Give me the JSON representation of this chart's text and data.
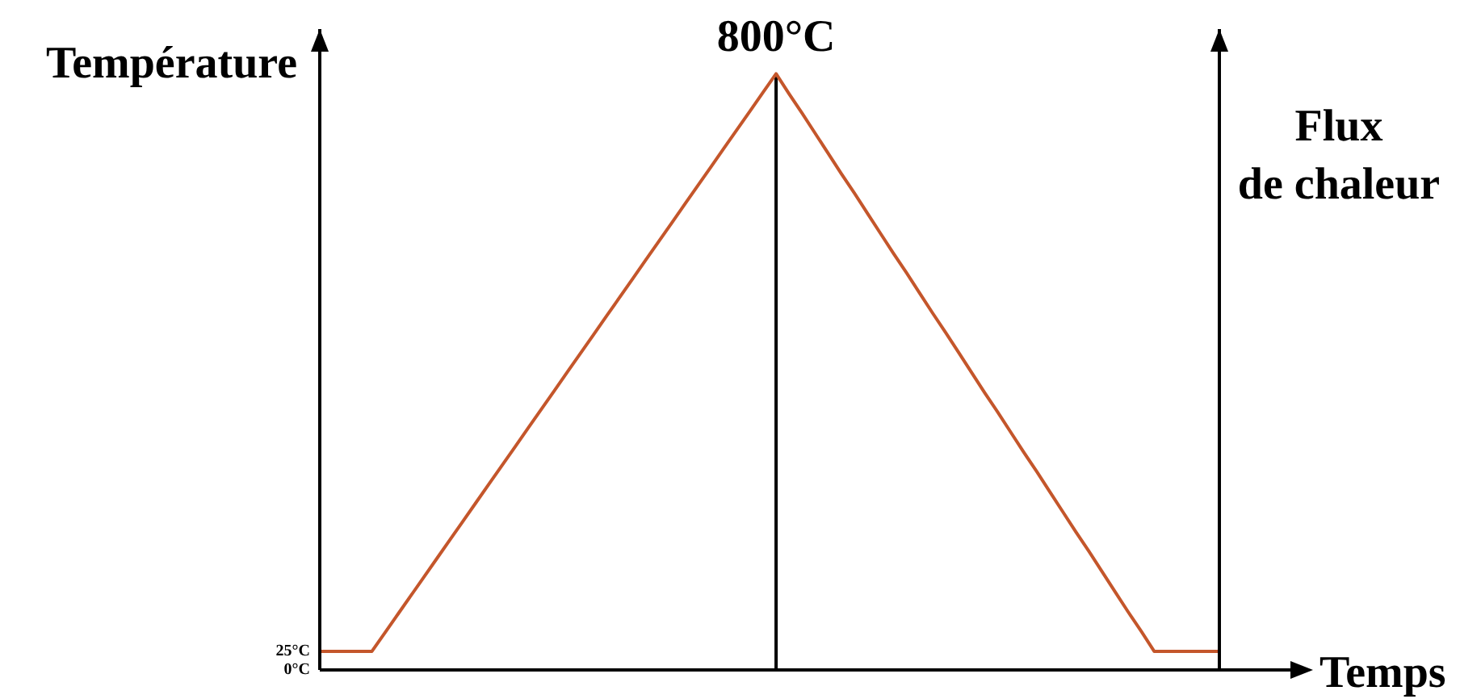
{
  "chart_data": {
    "type": "line",
    "xlabel": "Temps",
    "ylabel": "Température",
    "y2label": "Flux\nde chaleur",
    "categories": [
      null,
      null,
      null,
      null,
      null,
      null,
      null,
      null,
      null,
      null,
      null,
      null,
      null,
      null,
      null,
      null,
      null,
      null,
      null,
      null,
      null,
      null,
      null,
      null,
      null,
      null,
      null,
      null,
      null,
      null,
      null,
      null,
      null,
      null,
      null,
      null,
      null,
      null,
      null,
      null,
      null,
      null,
      null,
      null,
      null,
      null,
      null,
      null,
      null,
      null,
      null,
      null,
      null,
      null,
      null,
      null,
      null,
      null,
      null,
      null,
      null,
      null,
      null,
      null,
      null,
      null,
      null,
      null,
      null,
      null
    ],
    "series": [
      {
        "color": "#c4562b",
        "values": [
          25,
          25,
          25,
          25,
          25,
          50,
          75,
          100,
          125,
          150,
          175,
          200,
          225,
          250,
          275,
          300,
          325,
          350,
          375,
          400,
          425,
          450,
          475,
          500,
          525,
          550,
          575,
          600,
          625,
          650,
          675,
          700,
          725,
          750,
          775,
          800,
          773,
          747,
          720,
          693,
          666,
          640,
          613,
          586,
          559,
          533,
          506,
          479,
          453,
          426,
          399,
          372,
          346,
          319,
          292,
          266,
          239,
          212,
          185,
          159,
          132,
          105,
          78,
          52,
          25,
          25,
          25,
          25,
          25,
          25
        ],
        "value_labels": [
          null,
          null,
          null,
          null,
          null,
          null,
          null,
          null,
          null,
          null,
          null,
          null,
          null,
          null,
          null,
          null,
          null,
          null,
          null,
          null,
          null,
          null,
          null,
          null,
          null,
          null,
          null,
          null,
          null,
          null,
          null,
          null,
          null,
          null,
          null,
          "800°C",
          null,
          null,
          null,
          null,
          null,
          null,
          null,
          null,
          null,
          null,
          null,
          null,
          null,
          null,
          null,
          null,
          null,
          null,
          null,
          null,
          null,
          null,
          null,
          null,
          null,
          null,
          null,
          null,
          null,
          null,
          null,
          null,
          null,
          null
        ]
      },
      {
        "type": "bar",
        "color": "#000000",
        "values": [
          null,
          null,
          null,
          null,
          null,
          null,
          null,
          null,
          null,
          null,
          null,
          null,
          null,
          null,
          null,
          null,
          null,
          null,
          null,
          null,
          null,
          null,
          null,
          null,
          null,
          null,
          null,
          null,
          null,
          null,
          null,
          null,
          null,
          null,
          null,
          800,
          null,
          null,
          null,
          null,
          null,
          null,
          null,
          null,
          null,
          null,
          null,
          null,
          null,
          null,
          null,
          null,
          null,
          null,
          null,
          null,
          null,
          null,
          null,
          null,
          null,
          null,
          null,
          null,
          null,
          null,
          null,
          null,
          null,
          null
        ]
      }
    ],
    "ylim": [
      0,
      860
    ],
    "yticks": [
      {
        "value": 0,
        "label": "0°C"
      },
      {
        "value": 25,
        "label": "25°C"
      }
    ],
    "tick_labels": "y"
  }
}
